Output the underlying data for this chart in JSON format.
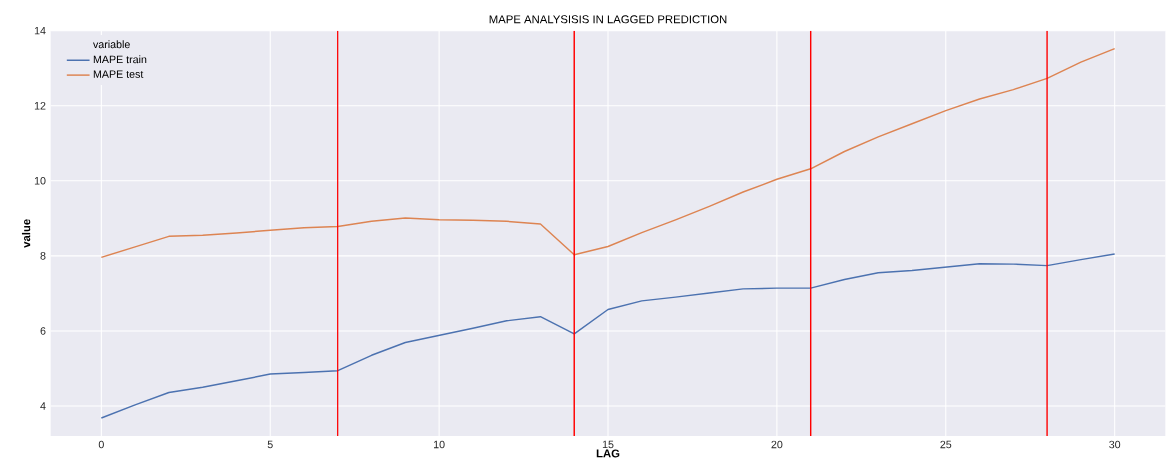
{
  "chart_data": {
    "type": "line",
    "title": "MAPE ANALYSISIS IN LAGGED PREDICTION",
    "xlabel": "LAG",
    "ylabel": "value",
    "legend_title": "variable",
    "x": [
      0,
      1,
      2,
      3,
      4,
      5,
      6,
      7,
      8,
      9,
      10,
      11,
      12,
      13,
      14,
      15,
      16,
      17,
      18,
      19,
      20,
      21,
      22,
      23,
      24,
      25,
      26,
      27,
      28,
      29,
      30
    ],
    "series": [
      {
        "name": "MAPE train",
        "color": "#4c72b0",
        "values": [
          3.68,
          4.03,
          4.36,
          4.5,
          4.67,
          4.85,
          4.89,
          4.94,
          5.35,
          5.69,
          5.88,
          6.07,
          6.27,
          6.38,
          5.92,
          6.57,
          6.8,
          6.9,
          7.01,
          7.12,
          7.14,
          7.14,
          7.37,
          7.55,
          7.61,
          7.7,
          7.79,
          7.78,
          7.74,
          7.9,
          8.05
        ]
      },
      {
        "name": "MAPE test",
        "color": "#dd8452",
        "values": [
          7.96,
          8.24,
          8.52,
          8.55,
          8.61,
          8.68,
          8.75,
          8.78,
          8.92,
          9.01,
          8.96,
          8.95,
          8.92,
          8.85,
          8.03,
          8.25,
          8.62,
          8.96,
          9.32,
          9.7,
          10.04,
          10.32,
          10.78,
          11.17,
          11.52,
          11.87,
          12.18,
          12.43,
          12.73,
          13.16,
          13.52
        ]
      }
    ],
    "xlim": [
      -1.5,
      31.5
    ],
    "ylim": [
      3.2,
      14
    ],
    "xticks": [
      0,
      5,
      10,
      15,
      20,
      25,
      30
    ],
    "yticks": [
      4,
      6,
      8,
      10,
      12,
      14
    ],
    "ref_lines": [
      {
        "axis": "x",
        "value": 7,
        "color": "#ff0000"
      },
      {
        "axis": "x",
        "value": 14,
        "color": "#ff0000"
      },
      {
        "axis": "x",
        "value": 21,
        "color": "#ff0000"
      },
      {
        "axis": "x",
        "value": 28,
        "color": "#ff0000"
      }
    ],
    "grid": true,
    "legend": "top left",
    "marker": "none",
    "line_style": "solid"
  }
}
